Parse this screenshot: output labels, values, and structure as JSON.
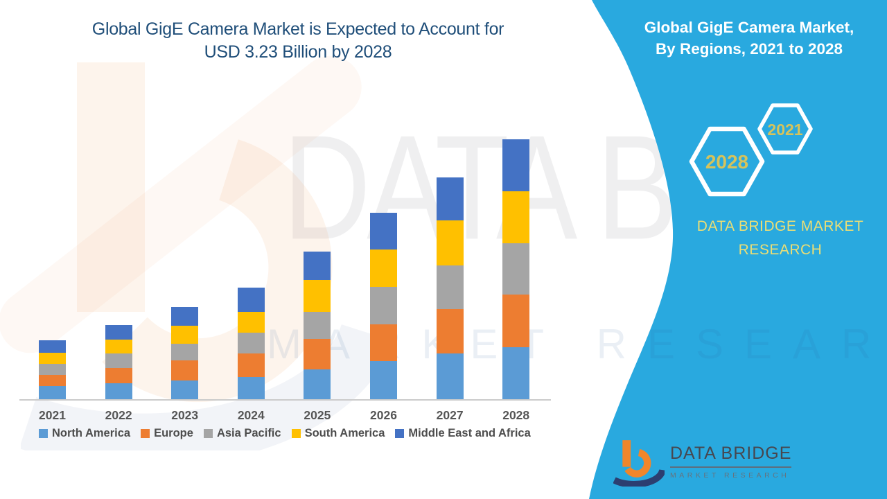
{
  "left_title": {
    "line1": "Global GigE Camera Market is Expected to Account for",
    "line2": "USD 3.23 Billion by 2028"
  },
  "right_panel": {
    "background_color": "#29A9DF",
    "title_line1": "Global GigE Camera Market,",
    "title_line2": "By Regions, 2021 to 2028",
    "hexagons": [
      {
        "label": "2028"
      },
      {
        "label": "2021"
      }
    ],
    "hex_label_color": "#D6C35B",
    "brand_line1": "DATA BRIDGE MARKET",
    "brand_line2": "RESEARCH",
    "brand_text_color": "#EBDE75"
  },
  "logo": {
    "name_text": "DATA BRIDGE",
    "sub_text": "MARKET RESEARCH",
    "b_orange": "#F0862B",
    "b_navy": "#2C3E70"
  },
  "watermark": {
    "big_text": "DATA BRIDGE",
    "sub_text": "MARKET RESEARCH"
  },
  "chart_data": {
    "type": "bar",
    "stacked": true,
    "title": "Global GigE Camera Market, By Regions, 2021 to 2028",
    "value_note": "USD Billion, estimated from bar heights; 2028 total = 3.23",
    "categories": [
      "2021",
      "2022",
      "2023",
      "2024",
      "2025",
      "2026",
      "2027",
      "2028"
    ],
    "series": [
      {
        "name": "North America",
        "values": [
          0.16,
          0.2,
          0.23,
          0.28,
          0.37,
          0.47,
          0.57,
          0.65
        ]
      },
      {
        "name": "Europe",
        "values": [
          0.14,
          0.19,
          0.25,
          0.29,
          0.38,
          0.46,
          0.55,
          0.65
        ]
      },
      {
        "name": "Asia Pacific",
        "values": [
          0.14,
          0.18,
          0.21,
          0.26,
          0.34,
          0.47,
          0.54,
          0.64
        ]
      },
      {
        "name": "South America",
        "values": [
          0.14,
          0.17,
          0.22,
          0.26,
          0.39,
          0.46,
          0.56,
          0.65
        ]
      },
      {
        "name": "Middle East and Africa",
        "values": [
          0.15,
          0.18,
          0.24,
          0.3,
          0.36,
          0.46,
          0.54,
          0.64
        ]
      }
    ],
    "totals": [
      0.73,
      0.92,
      1.15,
      1.39,
      1.84,
      2.32,
      2.76,
      3.23
    ],
    "colors": [
      "#5B9BD5",
      "#ED7D31",
      "#A5A5A5",
      "#FFC000",
      "#4472C4"
    ],
    "grid": false,
    "y_axis_visible": false,
    "legend_position": "bottom"
  }
}
